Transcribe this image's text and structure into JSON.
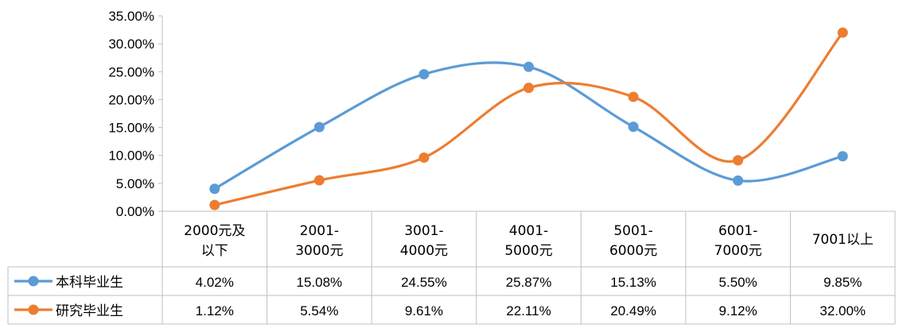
{
  "chart_data": {
    "type": "line",
    "smooth": true,
    "categories": [
      [
        "2000元及",
        "以下"
      ],
      [
        "2001-",
        "3000元"
      ],
      [
        "3001-",
        "4000元"
      ],
      [
        "4001-",
        "5000元"
      ],
      [
        "5001-",
        "6000元"
      ],
      [
        "6001-",
        "7000元"
      ],
      [
        "7001以上"
      ]
    ],
    "series": [
      {
        "name": "本科毕业生",
        "color": "#5B9BD5",
        "values": [
          4.02,
          15.08,
          24.55,
          25.87,
          15.13,
          5.5,
          9.85
        ],
        "labels": [
          "4.02%",
          "15.08%",
          "24.55%",
          "25.87%",
          "15.13%",
          "5.50%",
          "9.85%"
        ]
      },
      {
        "name": "研究毕业生",
        "color": "#ED7D31",
        "values": [
          1.12,
          5.54,
          9.61,
          22.11,
          20.49,
          9.12,
          32.0
        ],
        "labels": [
          "1.12%",
          "5.54%",
          "9.61%",
          "22.11%",
          "20.49%",
          "9.12%",
          "32.00%"
        ]
      }
    ],
    "y_ticks": [
      "0.00%",
      "5.00%",
      "10.00%",
      "15.00%",
      "20.00%",
      "25.00%",
      "30.00%",
      "35.00%"
    ],
    "ylim": [
      0,
      35
    ],
    "grid": false,
    "data_table": true,
    "legend": "data-table-left"
  }
}
